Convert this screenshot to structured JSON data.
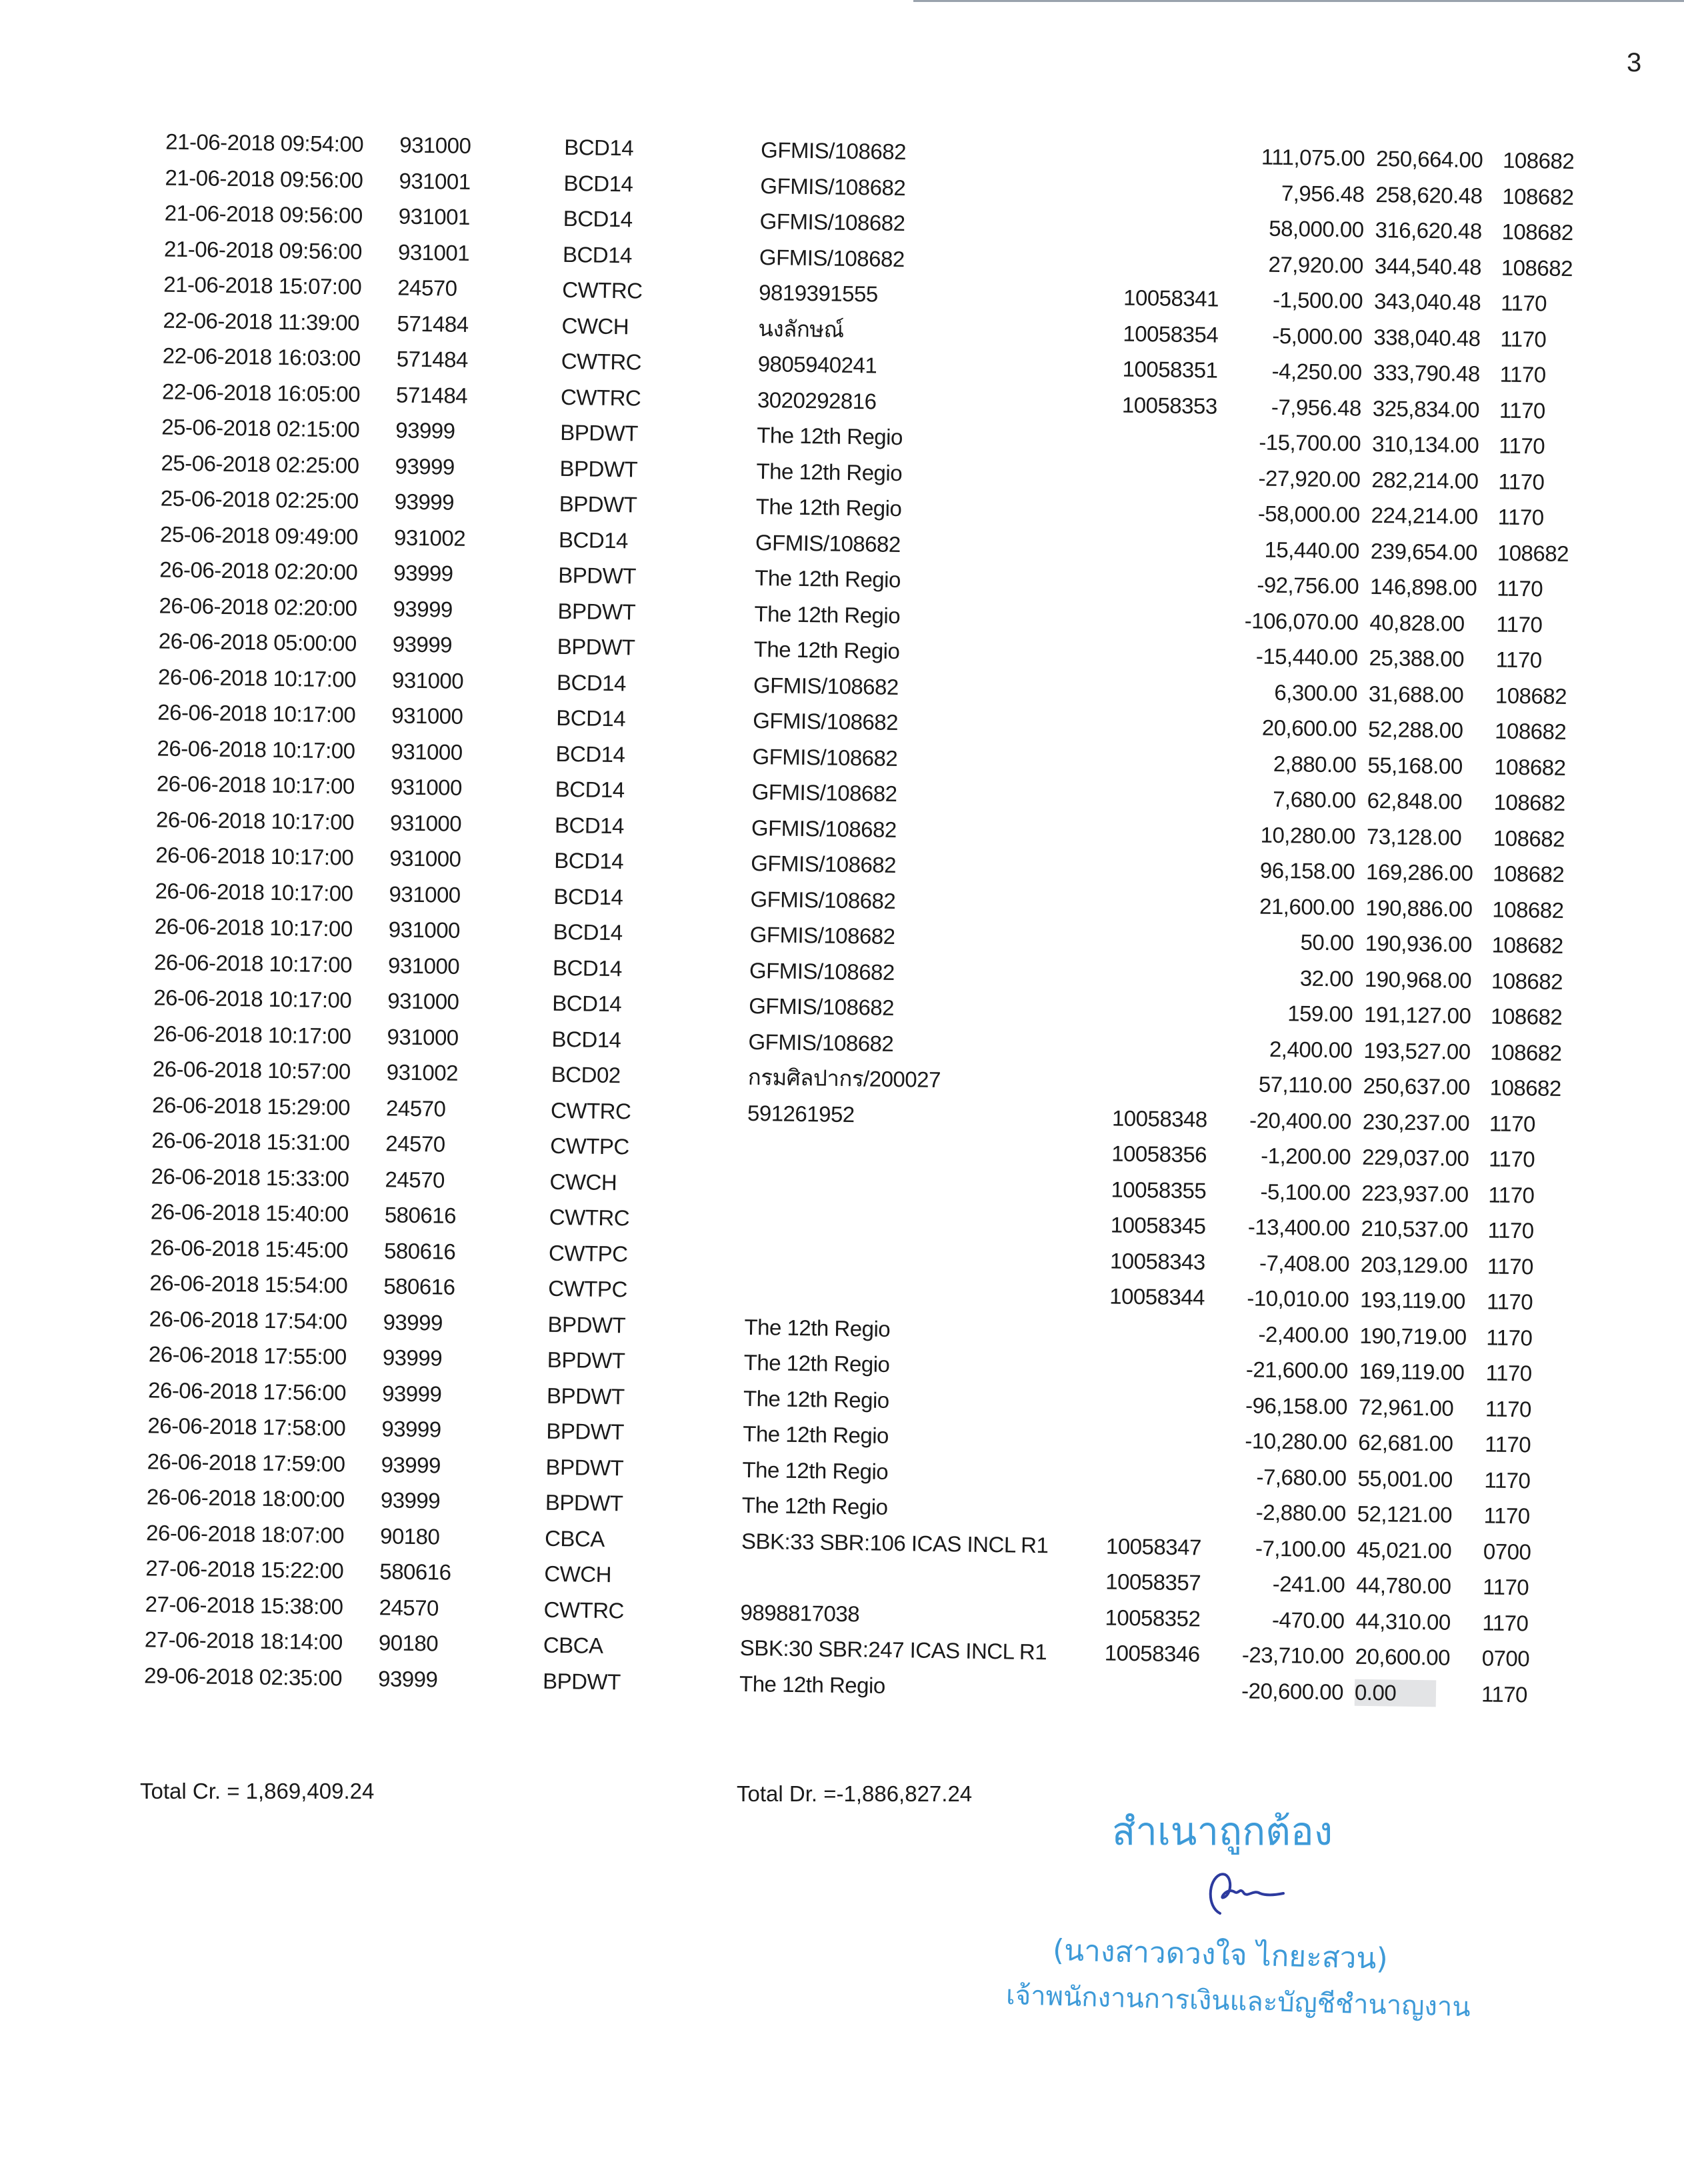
{
  "page_number": "3",
  "rows": [
    [
      "21-06-2018 09:54:00",
      "931000",
      "BCD14",
      "GFMIS/108682",
      "",
      "111,075.00",
      "250,664.00",
      "108682"
    ],
    [
      "21-06-2018 09:56:00",
      "931001",
      "BCD14",
      "GFMIS/108682",
      "",
      "7,956.48",
      "258,620.48",
      "108682"
    ],
    [
      "21-06-2018 09:56:00",
      "931001",
      "BCD14",
      "GFMIS/108682",
      "",
      "58,000.00",
      "316,620.48",
      "108682"
    ],
    [
      "21-06-2018 09:56:00",
      "931001",
      "BCD14",
      "GFMIS/108682",
      "",
      "27,920.00",
      "344,540.48",
      "108682"
    ],
    [
      "21-06-2018 15:07:00",
      "24570",
      "CWTRC",
      "9819391555",
      "10058341",
      "-1,500.00",
      "343,040.48",
      "1170"
    ],
    [
      "22-06-2018 11:39:00",
      "571484",
      "CWCH",
      "นงลักษณ์",
      "10058354",
      "-5,000.00",
      "338,040.48",
      "1170"
    ],
    [
      "22-06-2018 16:03:00",
      "571484",
      "CWTRC",
      "9805940241",
      "10058351",
      "-4,250.00",
      "333,790.48",
      "1170"
    ],
    [
      "22-06-2018 16:05:00",
      "571484",
      "CWTRC",
      "3020292816",
      "10058353",
      "-7,956.48",
      "325,834.00",
      "1170"
    ],
    [
      "25-06-2018 02:15:00",
      "93999",
      "BPDWT",
      "The 12th Regio",
      "",
      "-15,700.00",
      "310,134.00",
      "1170"
    ],
    [
      "25-06-2018 02:25:00",
      "93999",
      "BPDWT",
      "The 12th Regio",
      "",
      "-27,920.00",
      "282,214.00",
      "1170"
    ],
    [
      "25-06-2018 02:25:00",
      "93999",
      "BPDWT",
      "The 12th Regio",
      "",
      "-58,000.00",
      "224,214.00",
      "1170"
    ],
    [
      "25-06-2018 09:49:00",
      "931002",
      "BCD14",
      "GFMIS/108682",
      "",
      "15,440.00",
      "239,654.00",
      "108682"
    ],
    [
      "26-06-2018 02:20:00",
      "93999",
      "BPDWT",
      "The 12th Regio",
      "",
      "-92,756.00",
      "146,898.00",
      "1170"
    ],
    [
      "26-06-2018 02:20:00",
      "93999",
      "BPDWT",
      "The 12th Regio",
      "",
      "-106,070.00",
      "40,828.00",
      "1170"
    ],
    [
      "26-06-2018 05:00:00",
      "93999",
      "BPDWT",
      "The 12th Regio",
      "",
      "-15,440.00",
      "25,388.00",
      "1170"
    ],
    [
      "26-06-2018 10:17:00",
      "931000",
      "BCD14",
      "GFMIS/108682",
      "",
      "6,300.00",
      "31,688.00",
      "108682"
    ],
    [
      "26-06-2018 10:17:00",
      "931000",
      "BCD14",
      "GFMIS/108682",
      "",
      "20,600.00",
      "52,288.00",
      "108682"
    ],
    [
      "26-06-2018 10:17:00",
      "931000",
      "BCD14",
      "GFMIS/108682",
      "",
      "2,880.00",
      "55,168.00",
      "108682"
    ],
    [
      "26-06-2018 10:17:00",
      "931000",
      "BCD14",
      "GFMIS/108682",
      "",
      "7,680.00",
      "62,848.00",
      "108682"
    ],
    [
      "26-06-2018 10:17:00",
      "931000",
      "BCD14",
      "GFMIS/108682",
      "",
      "10,280.00",
      "73,128.00",
      "108682"
    ],
    [
      "26-06-2018 10:17:00",
      "931000",
      "BCD14",
      "GFMIS/108682",
      "",
      "96,158.00",
      "169,286.00",
      "108682"
    ],
    [
      "26-06-2018 10:17:00",
      "931000",
      "BCD14",
      "GFMIS/108682",
      "",
      "21,600.00",
      "190,886.00",
      "108682"
    ],
    [
      "26-06-2018 10:17:00",
      "931000",
      "BCD14",
      "GFMIS/108682",
      "",
      "50.00",
      "190,936.00",
      "108682"
    ],
    [
      "26-06-2018 10:17:00",
      "931000",
      "BCD14",
      "GFMIS/108682",
      "",
      "32.00",
      "190,968.00",
      "108682"
    ],
    [
      "26-06-2018 10:17:00",
      "931000",
      "BCD14",
      "GFMIS/108682",
      "",
      "159.00",
      "191,127.00",
      "108682"
    ],
    [
      "26-06-2018 10:17:00",
      "931000",
      "BCD14",
      "GFMIS/108682",
      "",
      "2,400.00",
      "193,527.00",
      "108682"
    ],
    [
      "26-06-2018 10:57:00",
      "931002",
      "BCD02",
      "กรมศิลปากร/200027",
      "",
      "57,110.00",
      "250,637.00",
      "108682"
    ],
    [
      "26-06-2018 15:29:00",
      "24570",
      "CWTRC",
      "591261952",
      "10058348",
      "-20,400.00",
      "230,237.00",
      "1170"
    ],
    [
      "26-06-2018 15:31:00",
      "24570",
      "CWTPC",
      "",
      "10058356",
      "-1,200.00",
      "229,037.00",
      "1170"
    ],
    [
      "26-06-2018 15:33:00",
      "24570",
      "CWCH",
      "",
      "10058355",
      "-5,100.00",
      "223,937.00",
      "1170"
    ],
    [
      "26-06-2018 15:40:00",
      "580616",
      "CWTRC",
      "",
      "10058345",
      "-13,400.00",
      "210,537.00",
      "1170"
    ],
    [
      "26-06-2018 15:45:00",
      "580616",
      "CWTPC",
      "",
      "10058343",
      "-7,408.00",
      "203,129.00",
      "1170"
    ],
    [
      "26-06-2018 15:54:00",
      "580616",
      "CWTPC",
      "",
      "10058344",
      "-10,010.00",
      "193,119.00",
      "1170"
    ],
    [
      "26-06-2018 17:54:00",
      "93999",
      "BPDWT",
      "The 12th Regio",
      "",
      "-2,400.00",
      "190,719.00",
      "1170"
    ],
    [
      "26-06-2018 17:55:00",
      "93999",
      "BPDWT",
      "The 12th Regio",
      "",
      "-21,600.00",
      "169,119.00",
      "1170"
    ],
    [
      "26-06-2018 17:56:00",
      "93999",
      "BPDWT",
      "The 12th Regio",
      "",
      "-96,158.00",
      "72,961.00",
      "1170"
    ],
    [
      "26-06-2018 17:58:00",
      "93999",
      "BPDWT",
      "The 12th Regio",
      "",
      "-10,280.00",
      "62,681.00",
      "1170"
    ],
    [
      "26-06-2018 17:59:00",
      "93999",
      "BPDWT",
      "The 12th Regio",
      "",
      "-7,680.00",
      "55,001.00",
      "1170"
    ],
    [
      "26-06-2018 18:00:00",
      "93999",
      "BPDWT",
      "The 12th Regio",
      "",
      "-2,880.00",
      "52,121.00",
      "1170"
    ],
    [
      "26-06-2018 18:07:00",
      "90180",
      "CBCA",
      "SBK:33 SBR:106 ICAS INCL R1",
      "10058347",
      "-7,100.00",
      "45,021.00",
      "0700"
    ],
    [
      "27-06-2018 15:22:00",
      "580616",
      "CWCH",
      "",
      "10058357",
      "-241.00",
      "44,780.00",
      "1170"
    ],
    [
      "27-06-2018 15:38:00",
      "24570",
      "CWTRC",
      "9898817038",
      "10058352",
      "-470.00",
      "44,310.00",
      "1170"
    ],
    [
      "27-06-2018 18:14:00",
      "90180",
      "CBCA",
      "SBK:30 SBR:247 ICAS INCL R1",
      "10058346",
      "-23,710.00",
      "20,600.00",
      "0700"
    ],
    [
      "29-06-2018 02:35:00",
      "93999",
      "BPDWT",
      "The 12th Regio",
      "",
      "-20,600.00",
      "0.00",
      "1170"
    ]
  ],
  "totals": {
    "credit": "Total Cr. = 1,869,409.24",
    "debit": "Total Dr. =-1,886,827.24"
  },
  "stamp": {
    "certified": "สำเนาถูกต้อง",
    "name": "(นางสาวดวงใจ  ไกยะสวน)",
    "position": "เจ้าพนักงานการเงินและบัญชีชำนาญงาน",
    "color": "#3d9ad8",
    "signature_color": "#2c3a9e"
  }
}
